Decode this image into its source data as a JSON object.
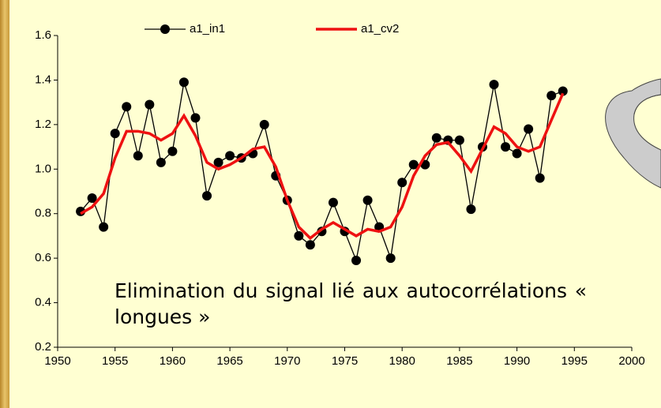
{
  "chart_data": {
    "type": "line",
    "annotation": "Elimination du signal lié aux autocorrélations « longues »",
    "x": [
      1952,
      1953,
      1954,
      1955,
      1956,
      1957,
      1958,
      1959,
      1960,
      1961,
      1962,
      1963,
      1964,
      1965,
      1966,
      1967,
      1968,
      1969,
      1970,
      1971,
      1972,
      1973,
      1974,
      1975,
      1976,
      1977,
      1978,
      1979,
      1980,
      1981,
      1982,
      1983,
      1984,
      1985,
      1986,
      1987,
      1988,
      1989,
      1990,
      1991,
      1992,
      1993,
      1994
    ],
    "series": [
      {
        "name": "a1_in1",
        "color": "#000000",
        "marker": true,
        "values": [
          0.81,
          0.87,
          0.74,
          1.16,
          1.28,
          1.06,
          1.29,
          1.03,
          1.08,
          1.39,
          1.23,
          0.88,
          1.03,
          1.06,
          1.05,
          1.07,
          1.2,
          0.97,
          0.86,
          0.7,
          0.66,
          0.72,
          0.85,
          0.72,
          0.59,
          0.86,
          0.74,
          0.6,
          0.94,
          1.02,
          1.02,
          1.14,
          1.13,
          1.13,
          0.82,
          1.1,
          1.38,
          1.1,
          1.07,
          1.18,
          0.96,
          1.33,
          1.35
        ]
      },
      {
        "name": "a1_cv2",
        "color": "#ee1111",
        "marker": false,
        "values": [
          0.8,
          0.83,
          0.89,
          1.05,
          1.17,
          1.17,
          1.16,
          1.13,
          1.16,
          1.24,
          1.15,
          1.03,
          1.0,
          1.02,
          1.05,
          1.09,
          1.1,
          1.01,
          0.86,
          0.74,
          0.69,
          0.73,
          0.76,
          0.73,
          0.7,
          0.73,
          0.72,
          0.74,
          0.83,
          0.97,
          1.06,
          1.11,
          1.12,
          1.06,
          0.99,
          1.09,
          1.19,
          1.16,
          1.1,
          1.08,
          1.1,
          1.22,
          1.34
        ]
      }
    ],
    "xlim": [
      1950,
      2000
    ],
    "xticks": [
      1950,
      1955,
      1960,
      1965,
      1970,
      1975,
      1980,
      1985,
      1990,
      1995,
      2000
    ],
    "ylim": [
      0.2,
      1.6
    ],
    "yticks": [
      0.2,
      0.4,
      0.6,
      0.8,
      {
        "value": 1,
        "label": "1.0"
      },
      1.2,
      1.4,
      1.6
    ]
  }
}
